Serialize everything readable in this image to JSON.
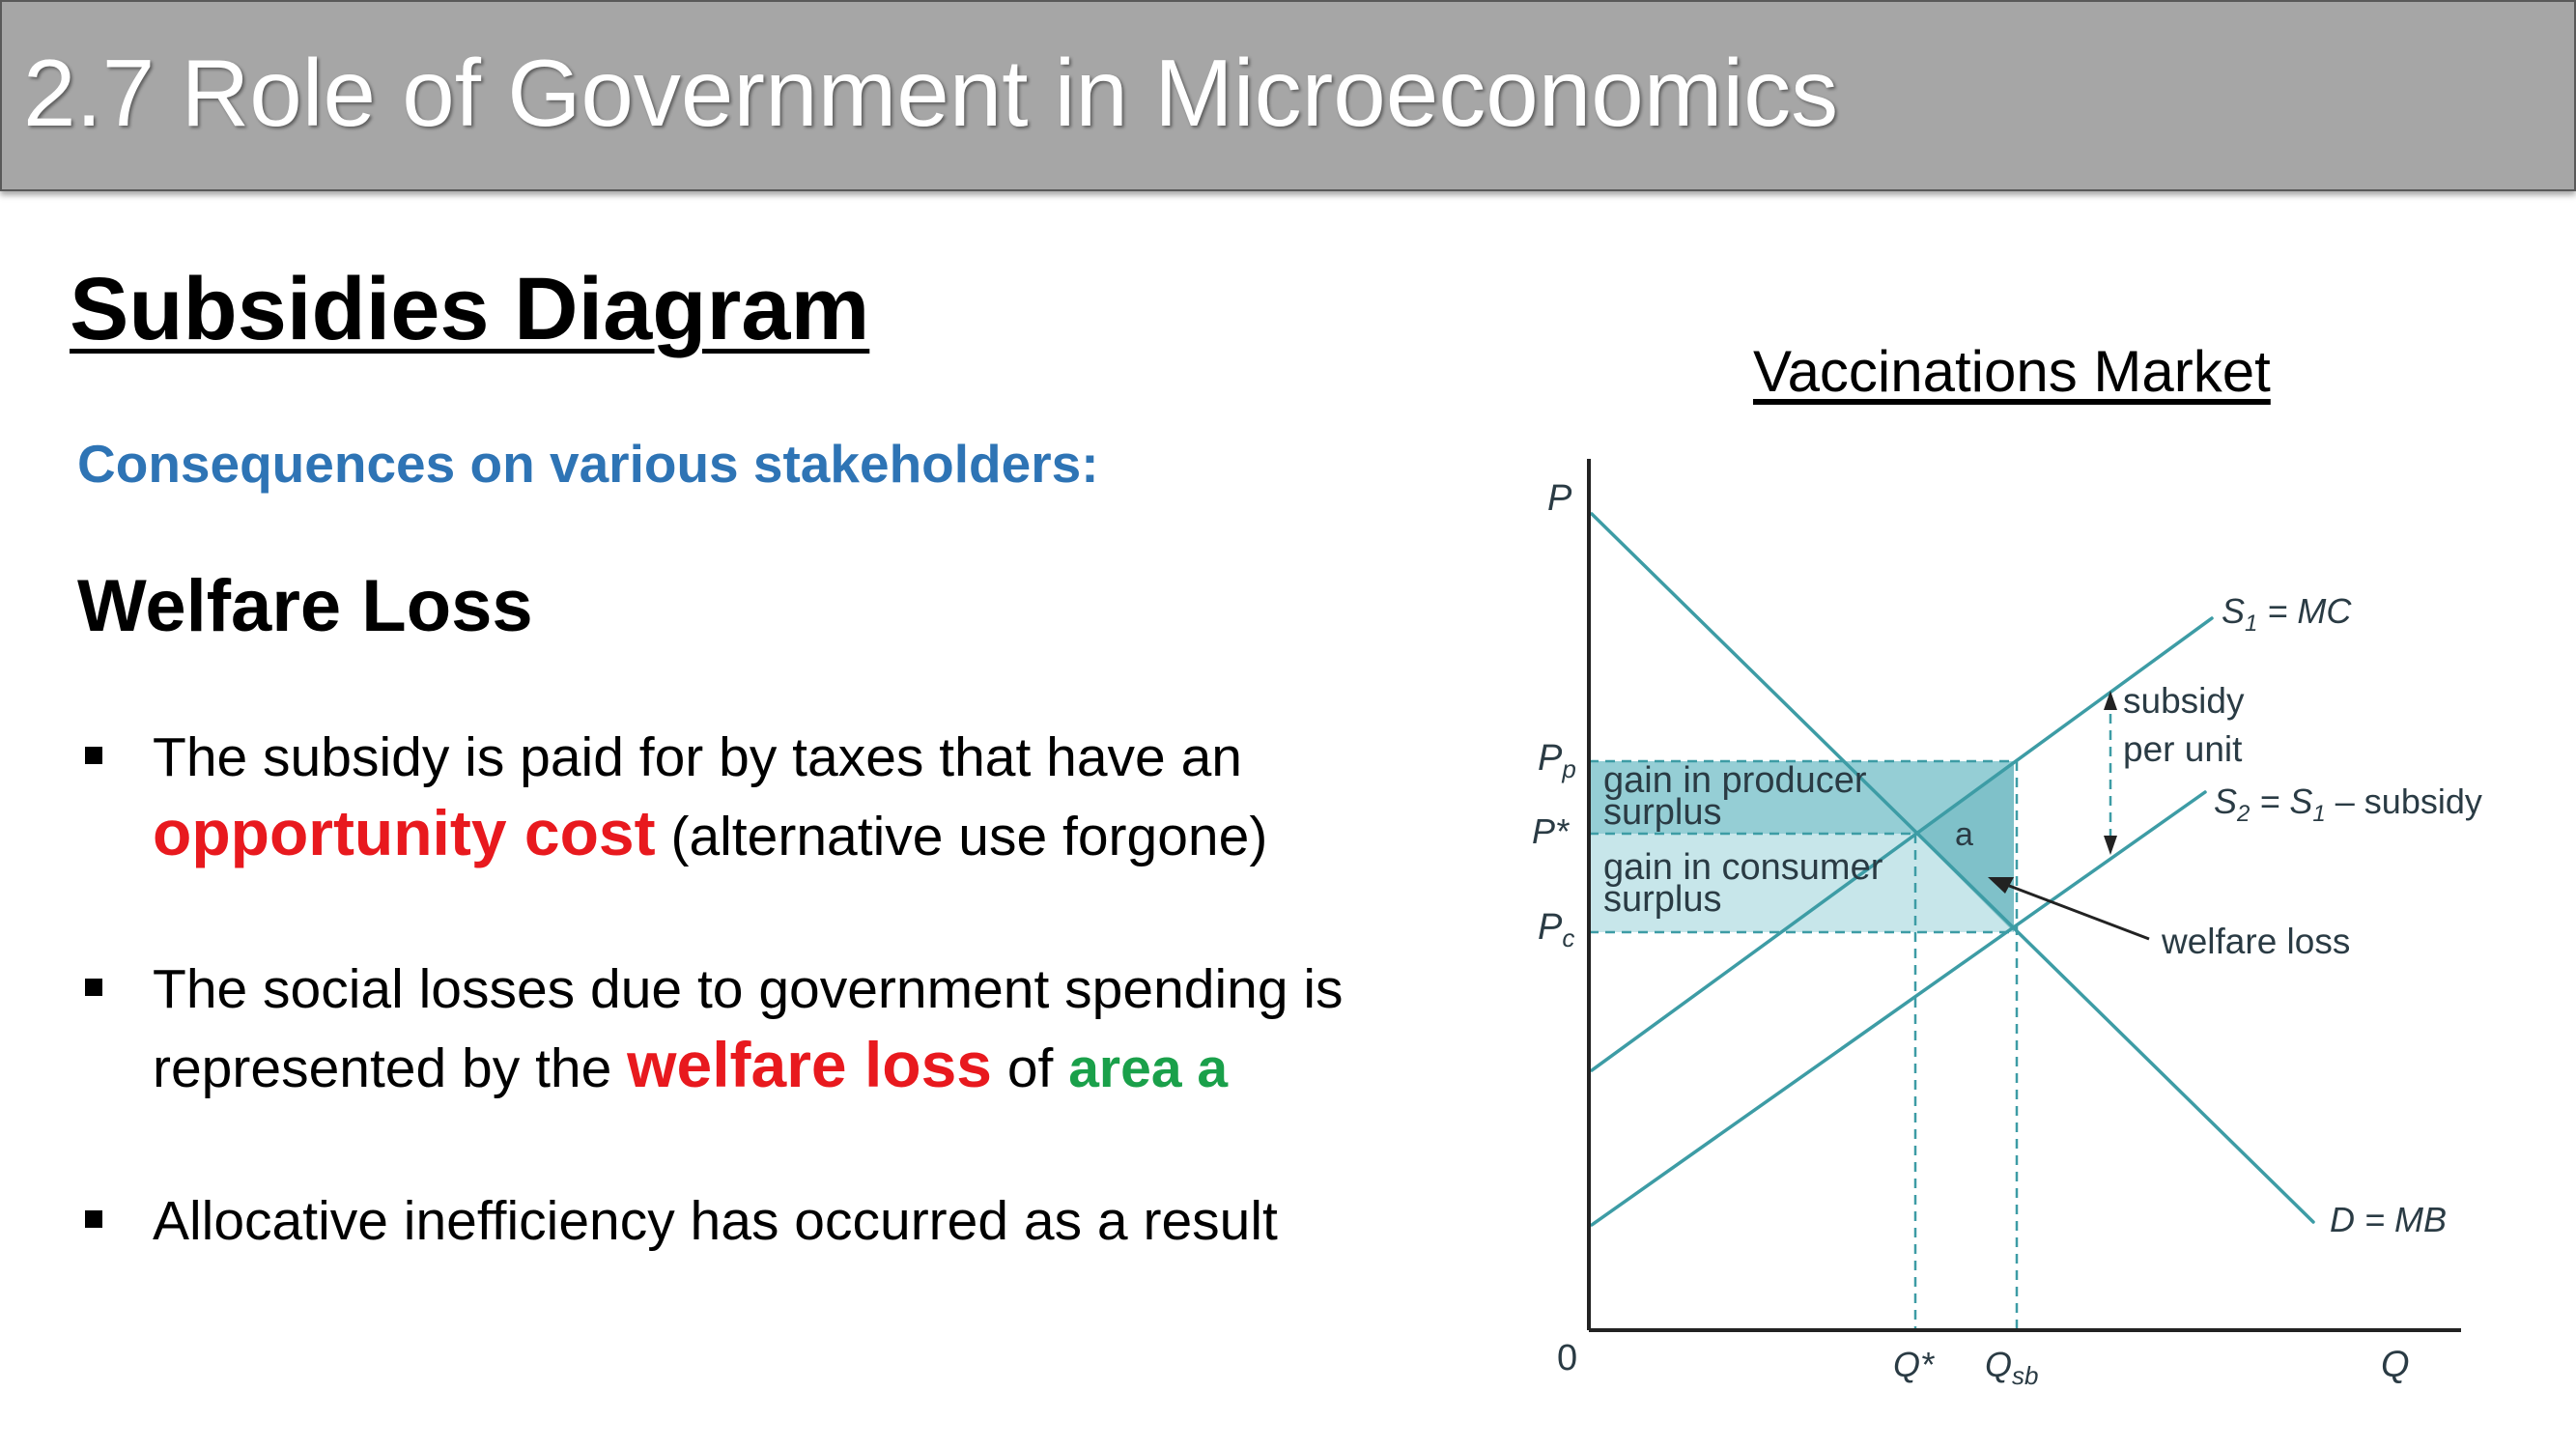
{
  "header": {
    "title": "2.7 Role of Government in Microeconomics"
  },
  "slide": {
    "heading": "Subsidies Diagram",
    "subheading": "Consequences on various stakeholders:",
    "section": "Welfare Loss",
    "bullets": [
      {
        "text_a": "The subsidy is paid for by taxes that have an ",
        "emph": "opportunity cost",
        "text_b": " (alternative use forgone)"
      },
      {
        "text_a": "The social losses due to government spending is represented by the ",
        "emph": "welfare loss",
        "text_b": " of ",
        "green": "area a"
      },
      {
        "text_a": "Allocative inefficiency has occurred as a result"
      }
    ]
  },
  "diagram": {
    "title": "Vaccinations Market",
    "axis": {
      "y": "P",
      "x": "Q",
      "origin": "0"
    },
    "price_labels": {
      "pp": "P",
      "pp_sub": "p",
      "pstar": "P*",
      "pc": "P",
      "pc_sub": "c"
    },
    "quantity_labels": {
      "qstar": "Q*",
      "qsb": "Q",
      "qsb_sub": "sb"
    },
    "curves": {
      "s1": {
        "label": "S",
        "sub": "1",
        "rest": " = MC"
      },
      "s2": {
        "label": "S",
        "sub": "2",
        "mid": " = S",
        "sub2": "1",
        "rest": " – subsidy"
      },
      "d": {
        "label": "D = MB"
      }
    },
    "annotations": {
      "subsidy_1": "subsidy",
      "subsidy_2": "per unit",
      "producer_1": "gain in producer",
      "producer_2": "surplus",
      "consumer_1": "gain in consumer",
      "consumer_2": "surplus",
      "area": "a",
      "welfare_loss": "welfare loss"
    },
    "colors": {
      "curve": "#3d9ca5",
      "producer_area": "#8fcbd3",
      "consumer_area": "#c7e6ea",
      "welfare_area": "#5fb1bb",
      "axis": "#222222"
    }
  }
}
